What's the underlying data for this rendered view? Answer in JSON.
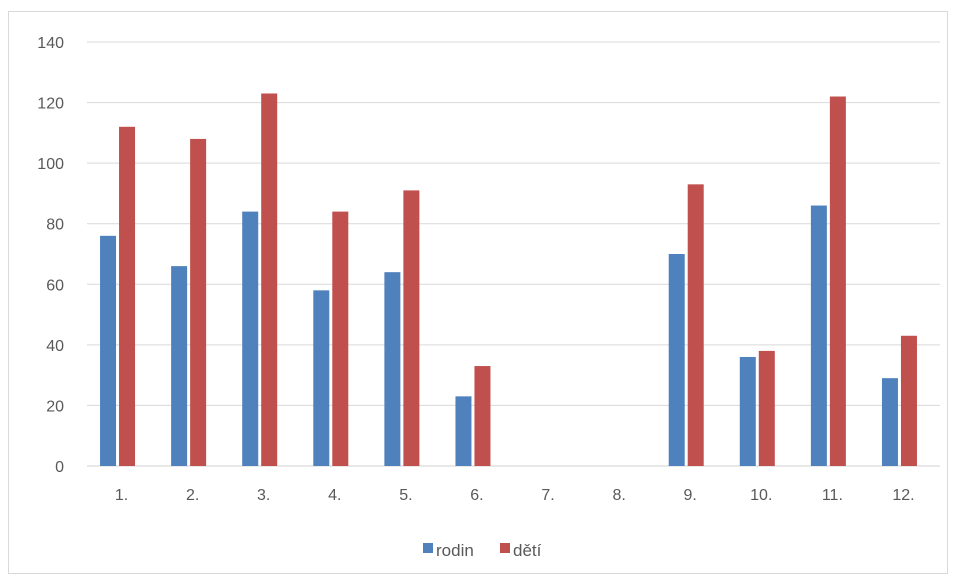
{
  "chart_data": {
    "type": "bar",
    "title": "",
    "xlabel": "",
    "ylabel": "",
    "ylim": [
      0,
      140
    ],
    "yticks": [
      0,
      20,
      40,
      60,
      80,
      100,
      120,
      140
    ],
    "grid": true,
    "legend_position": "bottom",
    "categories": [
      "1.",
      "2.",
      "3.",
      "4.",
      "5.",
      "6.",
      "7.",
      "8.",
      "9.",
      "10.",
      "11.",
      "12."
    ],
    "series": [
      {
        "name": "rodin",
        "color": "#4f81bd",
        "values": [
          76,
          66,
          84,
          58,
          64,
          23,
          0,
          0,
          70,
          36,
          86,
          29
        ]
      },
      {
        "name": "dětí",
        "color": "#c0504d",
        "values": [
          112,
          108,
          123,
          84,
          91,
          33,
          0,
          0,
          93,
          38,
          122,
          43
        ]
      }
    ]
  }
}
